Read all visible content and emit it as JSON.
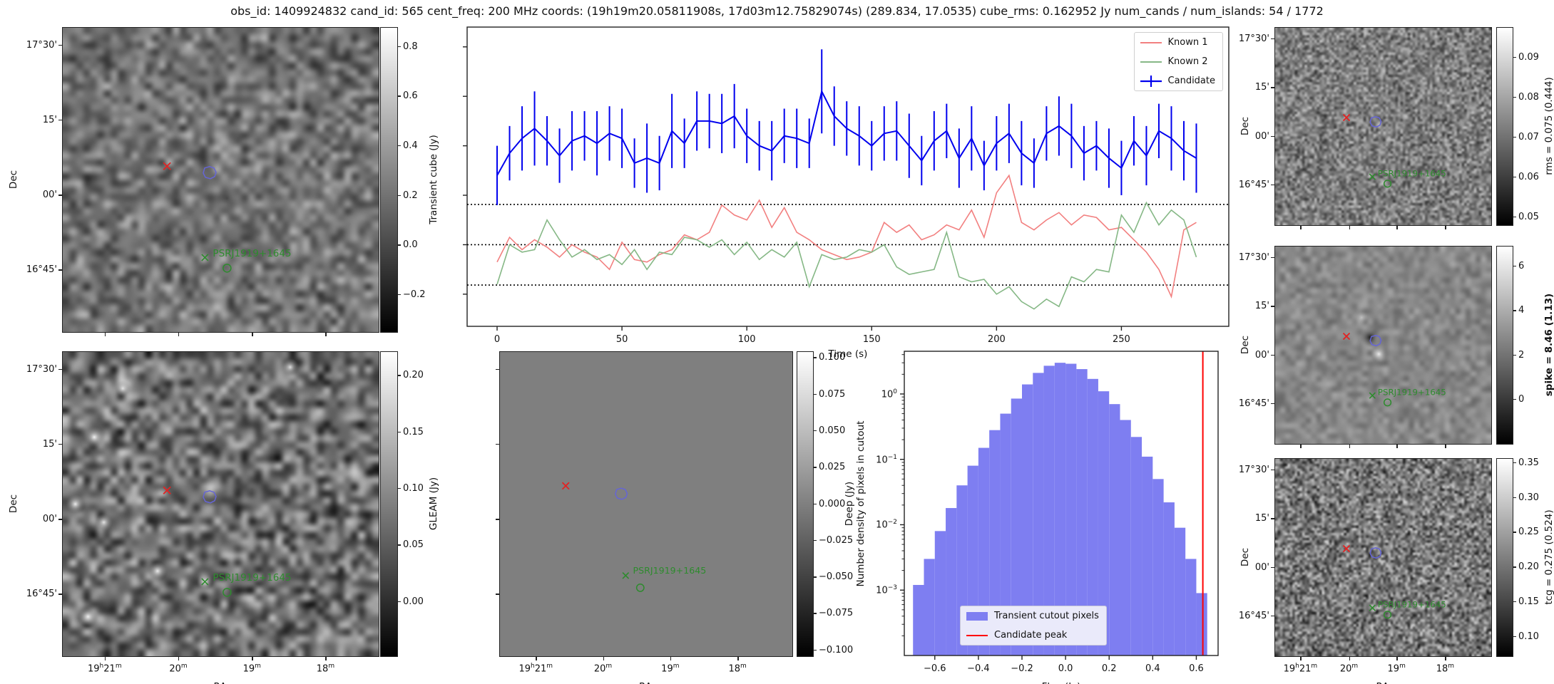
{
  "title": "obs_id: 1409924832 cand_id: 565 cent_freq: 200 MHz coords: (19h19m20.05811908s, 17d03m12.75829074s) (289.834, 17.0535) cube_rms: 0.162952 Jy num_cands / num_islands: 54 / 1772",
  "psr_label": "PSRJ1919+1645",
  "colors": {
    "candidate_blue": "#0000ee",
    "known1_red": "#f28080",
    "known2_green": "#86b886",
    "hist_bar": "#7e7ef1",
    "peak_line_red": "#ff0000",
    "marker_red": "#e32222",
    "marker_green": "#2e8b2e",
    "contour_blue": "#6565d6",
    "deep_gray": "#7f7f7f"
  },
  "axes": {
    "dec_label": "Dec",
    "ra_label": "RA",
    "dec_ticks": [
      "17°30'",
      "15'",
      "00'",
      "16°45'"
    ],
    "ra_ticks": [
      "19h21m",
      "20m",
      "19m",
      "18m"
    ]
  },
  "colorbars": {
    "transient": {
      "label": "Transient cube (Jy)",
      "bold": false,
      "vmin": -0.35,
      "vmax": 0.877,
      "tick_values": [
        0.8,
        0.6,
        0.4,
        0.2,
        0.0,
        -0.2
      ],
      "tick_labels": [
        "0.8",
        "0.6",
        "0.4",
        "0.2",
        "0.0",
        "−0.2"
      ]
    },
    "gleam": {
      "label": "GLEAM (Jy)",
      "bold": false,
      "vmin": -0.048,
      "vmax": 0.221,
      "tick_values": [
        0.2,
        0.15,
        0.1,
        0.05,
        0.0
      ],
      "tick_labels": [
        "0.20",
        "0.15",
        "0.10",
        "0.05",
        "0.00"
      ]
    },
    "deep": {
      "label": "Deep (Jy)",
      "bold": false,
      "vmin": -0.104,
      "vmax": 0.104,
      "tick_values": [
        0.1,
        0.075,
        0.05,
        0.025,
        0.0,
        -0.025,
        -0.05,
        -0.075,
        -0.1
      ],
      "tick_labels": [
        "0.100",
        "0.075",
        "0.050",
        "0.025",
        "0.000",
        "−0.025",
        "−0.050",
        "−0.075",
        "−0.100"
      ]
    },
    "rms": {
      "label": "rms = 0.075 (0.444)",
      "bold": false,
      "vmin": 0.048,
      "vmax": 0.0975,
      "tick_values": [
        0.09,
        0.08,
        0.07,
        0.06,
        0.05
      ],
      "tick_labels": [
        "0.09",
        "0.08",
        "0.07",
        "0.06",
        "0.05"
      ]
    },
    "spike": {
      "label": "spike = 8.46 (1.13)",
      "bold": true,
      "vmin": -2.0,
      "vmax": 6.9,
      "tick_values": [
        6,
        4,
        2,
        0
      ],
      "tick_labels": [
        "6",
        "4",
        "2",
        "0"
      ]
    },
    "tcg": {
      "label": "tcg = 0.275 (0.524)",
      "bold": false,
      "vmin": 0.072,
      "vmax": 0.356,
      "tick_values": [
        0.35,
        0.3,
        0.25,
        0.2,
        0.15,
        0.1
      ],
      "tick_labels": [
        "0.35",
        "0.30",
        "0.25",
        "0.20",
        "0.15",
        "0.10"
      ]
    }
  },
  "chart_data": [
    {
      "id": "lightcurve",
      "type": "line",
      "xlabel": "Time (s)",
      "ylabel": "",
      "xlim": [
        -12,
        293
      ],
      "ylim": [
        -0.33,
        0.88
      ],
      "x_tick_values": [
        0,
        50,
        100,
        150,
        200,
        250
      ],
      "x_tick_labels": [
        "0",
        "50",
        "100",
        "150",
        "200",
        "250"
      ],
      "y_tick_values": [
        0.8,
        0.6,
        0.4,
        0.2,
        0.0,
        -0.2
      ],
      "dotted_hlines": [
        0.162952,
        0.0,
        -0.162952
      ],
      "legend_position": "upper right",
      "x": [
        0,
        5,
        10,
        15,
        20,
        25,
        30,
        35,
        40,
        45,
        50,
        55,
        60,
        65,
        70,
        75,
        80,
        85,
        90,
        95,
        100,
        105,
        110,
        115,
        120,
        125,
        130,
        135,
        140,
        145,
        150,
        155,
        160,
        165,
        170,
        175,
        180,
        185,
        190,
        195,
        200,
        205,
        210,
        215,
        220,
        225,
        230,
        235,
        240,
        245,
        250,
        255,
        260,
        265,
        270,
        275,
        280
      ],
      "series": [
        {
          "name": "Known 1",
          "values": [
            -0.07,
            0.03,
            -0.02,
            0.02,
            -0.01,
            -0.05,
            0.0,
            -0.03,
            -0.05,
            -0.1,
            0.01,
            -0.06,
            -0.07,
            -0.04,
            -0.02,
            0.04,
            0.02,
            0.05,
            0.16,
            0.12,
            0.1,
            0.18,
            0.07,
            0.15,
            0.05,
            0.02,
            -0.02,
            -0.04,
            -0.06,
            -0.05,
            -0.03,
            0.09,
            0.05,
            0.08,
            0.02,
            0.04,
            0.08,
            0.06,
            0.14,
            0.03,
            0.21,
            0.28,
            0.09,
            0.06,
            0.1,
            0.13,
            0.08,
            0.12,
            0.11,
            0.06,
            0.07,
            0.02,
            -0.03,
            -0.1,
            -0.21,
            0.06,
            0.09
          ]
        },
        {
          "name": "Known 2",
          "values": [
            -0.16,
            0.0,
            -0.03,
            -0.02,
            0.1,
            0.02,
            -0.05,
            -0.02,
            -0.06,
            -0.04,
            -0.08,
            -0.02,
            -0.1,
            -0.03,
            -0.04,
            0.03,
            0.02,
            -0.01,
            0.02,
            -0.04,
            0.01,
            -0.06,
            -0.02,
            -0.05,
            0.01,
            -0.17,
            -0.04,
            -0.06,
            -0.05,
            -0.02,
            -0.03,
            0.0,
            -0.09,
            -0.12,
            -0.11,
            -0.1,
            0.05,
            -0.13,
            -0.15,
            -0.14,
            -0.2,
            -0.17,
            -0.23,
            -0.26,
            -0.22,
            -0.25,
            -0.13,
            -0.15,
            -0.1,
            -0.11,
            0.12,
            0.05,
            0.17,
            0.08,
            0.14,
            0.1,
            -0.05
          ]
        },
        {
          "name": "Candidate",
          "values": [
            0.28,
            0.37,
            0.43,
            0.47,
            0.42,
            0.36,
            0.42,
            0.44,
            0.41,
            0.45,
            0.43,
            0.33,
            0.35,
            0.33,
            0.46,
            0.41,
            0.5,
            0.5,
            0.49,
            0.52,
            0.44,
            0.4,
            0.38,
            0.44,
            0.43,
            0.41,
            0.62,
            0.52,
            0.47,
            0.44,
            0.4,
            0.45,
            0.46,
            0.4,
            0.34,
            0.42,
            0.46,
            0.35,
            0.43,
            0.32,
            0.41,
            0.45,
            0.37,
            0.33,
            0.45,
            0.48,
            0.44,
            0.37,
            0.4,
            0.35,
            0.31,
            0.42,
            0.36,
            0.46,
            0.43,
            0.38,
            0.35
          ],
          "errors": [
            0.12,
            0.11,
            0.13,
            0.15,
            0.1,
            0.11,
            0.12,
            0.1,
            0.13,
            0.11,
            0.12,
            0.1,
            0.14,
            0.11,
            0.15,
            0.1,
            0.12,
            0.11,
            0.12,
            0.13,
            0.11,
            0.1,
            0.12,
            0.11,
            0.12,
            0.1,
            0.17,
            0.12,
            0.11,
            0.12,
            0.1,
            0.11,
            0.12,
            0.13,
            0.1,
            0.12,
            0.11,
            0.12,
            0.13,
            0.1,
            0.11,
            0.12,
            0.13,
            0.1,
            0.11,
            0.12,
            0.13,
            0.11,
            0.1,
            0.12,
            0.11,
            0.1,
            0.12,
            0.11,
            0.13,
            0.12,
            0.14
          ]
        }
      ]
    },
    {
      "id": "pixel-histogram",
      "type": "bar",
      "xlabel": "Flux (Jy)",
      "ylabel": "Number density of pixels in cutout",
      "yscale": "log",
      "xlim": [
        -0.74,
        0.7
      ],
      "ylim": [
        0.0001,
        4.5
      ],
      "x_tick_values": [
        -0.6,
        -0.4,
        -0.2,
        0.0,
        0.2,
        0.4,
        0.6
      ],
      "x_tick_labels": [
        "−0.6",
        "−0.4",
        "−0.2",
        "0.0",
        "0.2",
        "0.4",
        "0.6"
      ],
      "y_tick_exponents": [
        "0",
        "−1",
        "−2",
        "−3"
      ],
      "bin_width": 0.05,
      "bin_centers": [
        -0.675,
        -0.625,
        -0.575,
        -0.525,
        -0.475,
        -0.425,
        -0.375,
        -0.325,
        -0.275,
        -0.225,
        -0.175,
        -0.125,
        -0.075,
        -0.025,
        0.025,
        0.075,
        0.125,
        0.175,
        0.225,
        0.275,
        0.325,
        0.375,
        0.425,
        0.475,
        0.525,
        0.575,
        0.625
      ],
      "densities": [
        0.0012,
        0.003,
        0.008,
        0.018,
        0.04,
        0.08,
        0.15,
        0.28,
        0.5,
        0.85,
        1.4,
        2.1,
        2.7,
        3.0,
        2.9,
        2.4,
        1.7,
        1.1,
        0.7,
        0.4,
        0.22,
        0.11,
        0.05,
        0.022,
        0.009,
        0.003,
        0.0009
      ],
      "candidate_peak_x": 0.63,
      "legend": [
        "Transient cutout pixels",
        "Candidate peak"
      ],
      "legend_position": "lower center"
    }
  ],
  "cutout_panels": [
    {
      "id": "transient-cube-cutout",
      "colorbar": "transient"
    },
    {
      "id": "gleam-cutout",
      "colorbar": "gleam"
    },
    {
      "id": "deep-cutout",
      "colorbar": "deep"
    },
    {
      "id": "rms-cutout",
      "colorbar": "rms"
    },
    {
      "id": "spike-cutout",
      "colorbar": "spike"
    },
    {
      "id": "tcg-cutout",
      "colorbar": "tcg"
    }
  ]
}
